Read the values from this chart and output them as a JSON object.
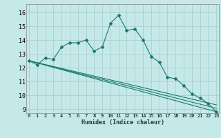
{
  "title": "",
  "xlabel": "Humidex (Indice chaleur)",
  "bg_color": "#c5e8e8",
  "grid_color": "#aad0d0",
  "line_color": "#1a7a6e",
  "x_ticks": [
    0,
    1,
    2,
    3,
    4,
    5,
    6,
    7,
    8,
    9,
    10,
    11,
    12,
    13,
    14,
    15,
    16,
    17,
    18,
    19,
    20,
    21,
    22,
    23
  ],
  "y_ticks": [
    9,
    10,
    11,
    12,
    13,
    14,
    15,
    16
  ],
  "xlim": [
    -0.3,
    23.3
  ],
  "ylim": [
    8.7,
    16.6
  ],
  "series1_x": [
    0,
    1,
    2,
    3,
    4,
    5,
    6,
    7,
    8,
    9,
    10,
    11,
    12,
    13,
    14,
    15,
    16,
    17,
    18,
    19,
    20,
    21,
    22,
    23
  ],
  "series1_y": [
    12.5,
    12.2,
    12.7,
    12.6,
    13.5,
    13.8,
    13.8,
    14.0,
    13.2,
    13.5,
    15.2,
    15.8,
    14.7,
    14.8,
    14.0,
    12.8,
    12.4,
    11.3,
    11.2,
    10.7,
    10.1,
    9.8,
    9.4,
    8.8
  ],
  "series2_y_end": 8.8,
  "series3_y_end": 9.05,
  "series4_y_end": 9.3,
  "series_y_start": 12.5,
  "series_x_start": 0,
  "series_x_end": 23
}
